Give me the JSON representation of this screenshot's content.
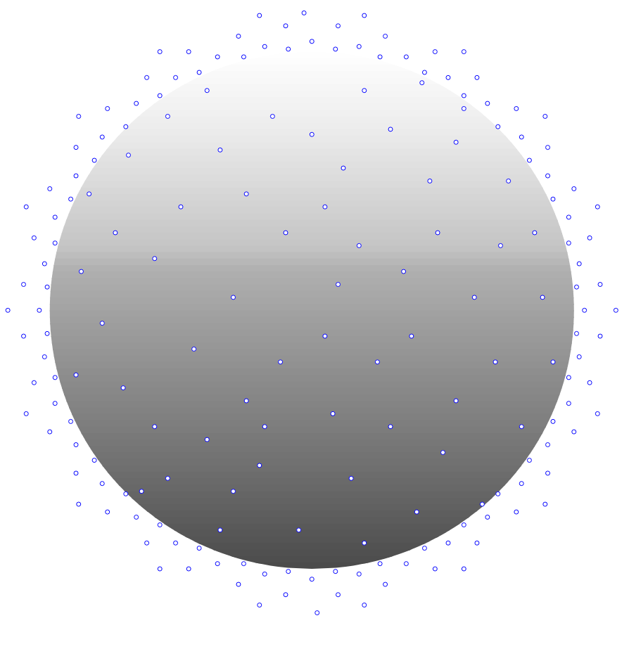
{
  "chart_data": {
    "type": "scatter",
    "x": [
      1.04,
      1.02,
      0.98,
      0.9,
      0.8,
      0.67,
      0.52,
      0.36,
      0.18,
      0,
      -0.18,
      -0.36,
      -0.52,
      -0.67,
      -0.8,
      -0.9,
      -0.98,
      -1.02,
      -1.04,
      -1.02,
      -0.98,
      -0.9,
      -0.8,
      -0.67,
      -0.52,
      -0.36,
      -0.18,
      0,
      0.18,
      0.36,
      0.52,
      0.67,
      0.8,
      0.9,
      0.98,
      1.02,
      1.1,
      1.06,
      1.0,
      0.9,
      0.78,
      0.63,
      0.47,
      0.28,
      0.1,
      -0.1,
      -0.28,
      -0.47,
      -0.63,
      -0.78,
      -0.9,
      -1.0,
      -1.06,
      -1.1,
      -1.1,
      -1.06,
      -1.0,
      -0.9,
      -0.78,
      -0.63,
      -0.47,
      -0.28,
      -0.1,
      0.1,
      0.28,
      0.47,
      0.63,
      0.78,
      0.9,
      1.0,
      1.06,
      1.1,
      1.16,
      1.09,
      0.89,
      0.58,
      0.2,
      -0.2,
      -0.58,
      -0.89,
      -1.09,
      -1.16,
      -1.09,
      -0.89,
      -0.58,
      -0.2,
      0.2,
      0.58,
      0.89,
      1.09,
      0.02,
      -0.03,
      1.01,
      0.98,
      0.92,
      0.83,
      0.71,
      0.58,
      0.43,
      0.26,
      0.09,
      -0.09,
      -0.26,
      -0.43,
      -0.58,
      -0.71,
      -0.83,
      -0.92,
      -0.98,
      -1.01,
      -1.01,
      -0.98,
      -0.92,
      -0.83,
      -0.71,
      -0.58,
      -0.43,
      -0.26,
      -0.09,
      0.09,
      0.26,
      0.43,
      0.58,
      0.71,
      0.83,
      0.92,
      0.98,
      1.01,
      0.12,
      -0.35,
      0.48,
      -0.6,
      0.05,
      0.3,
      -0.25,
      0.7,
      -0.72,
      0.2,
      -0.1,
      0.55,
      -0.55,
      0.4,
      -0.4,
      0.85,
      -0.85,
      0.15,
      -0.05,
      0.62,
      -0.3,
      0.35,
      -0.15,
      0.75,
      -0.7,
      0.25,
      -0.45,
      0.5,
      -0.2,
      0.05,
      -0.8,
      0.8,
      -0.6,
      0.3,
      -0.25,
      0.65,
      -0.35,
      0.1,
      -0.5,
      0.45,
      0.0,
      -0.65,
      0.55,
      -0.12,
      0.88,
      -0.88,
      0.2,
      -0.75,
      0.38,
      -0.4,
      0.72,
      0.18,
      -0.55,
      0.58,
      -0.18,
      0.08,
      0.42,
      -0.9,
      0.92,
      -0.3
    ],
    "y": [
      0,
      0.18,
      0.36,
      0.52,
      0.67,
      0.8,
      0.9,
      0.98,
      1.02,
      1.04,
      1.02,
      0.98,
      0.9,
      0.8,
      0.67,
      0.52,
      0.36,
      0.18,
      0,
      -0.18,
      -0.36,
      -0.52,
      -0.67,
      -0.8,
      -0.9,
      -0.98,
      -1.02,
      -1.04,
      -1.02,
      -0.98,
      -0.9,
      -0.8,
      -0.67,
      -0.52,
      -0.36,
      -0.18,
      0.1,
      0.28,
      0.47,
      0.63,
      0.78,
      0.9,
      1.0,
      1.06,
      1.1,
      1.1,
      1.06,
      1.0,
      0.9,
      0.78,
      0.63,
      0.47,
      0.28,
      0.1,
      -0.1,
      -0.28,
      -0.47,
      -0.63,
      -0.78,
      -0.9,
      -1.0,
      -1.06,
      -1.1,
      -1.1,
      -1.06,
      -1.0,
      -0.9,
      -0.78,
      -0.63,
      -0.47,
      -0.28,
      -0.1,
      0,
      0.4,
      0.75,
      1.0,
      1.14,
      1.14,
      1.0,
      0.75,
      0.4,
      0,
      -0.4,
      -0.75,
      -1.0,
      -1.14,
      -1.14,
      -1.0,
      -0.75,
      -0.4,
      -1.17,
      1.15,
      0.09,
      0.26,
      0.43,
      0.58,
      0.71,
      0.83,
      0.92,
      0.98,
      1.01,
      1.01,
      0.98,
      0.92,
      0.83,
      0.71,
      0.58,
      0.43,
      0.26,
      0.09,
      -0.09,
      -0.26,
      -0.43,
      -0.58,
      -0.71,
      -0.83,
      -0.92,
      -0.98,
      -1.01,
      -1.01,
      -0.98,
      -0.92,
      -0.83,
      -0.71,
      -0.58,
      -0.43,
      -0.26,
      -0.09,
      0.55,
      0.62,
      0.3,
      0.2,
      -0.1,
      -0.45,
      -0.35,
      -0.2,
      -0.3,
      0.85,
      0.3,
      0.65,
      -0.65,
      -0.78,
      0.85,
      0.3,
      0.45,
      -0.65,
      -0.85,
      0.05,
      0.05,
      0.15,
      0.75,
      0.5,
      0.6,
      -0.2,
      -0.15,
      -0.55,
      -0.6,
      0.4,
      -0.05,
      -0.45,
      -0.45,
      0.7,
      0.45,
      -0.75,
      -0.85,
      0.1,
      0.4,
      0.5,
      0.68,
      -0.7,
      -0.35,
      -0.2,
      0.05,
      0.15,
      -0.9,
      0.3,
      -0.1,
      -0.5,
      0.25,
      0.25,
      0.75,
      0.78,
      -0.45,
      -0.4,
      0.88,
      -0.25,
      -0.2,
      -0.7
    ],
    "color": "#0000ff",
    "marker": "circle",
    "xlim": [
      -1.19,
      1.21
    ],
    "ylim": [
      -1.31,
      1.2
    ],
    "grid": false,
    "tick_labels": false,
    "sphere": {
      "center": [
        0,
        0
      ],
      "radius": 1
    }
  }
}
